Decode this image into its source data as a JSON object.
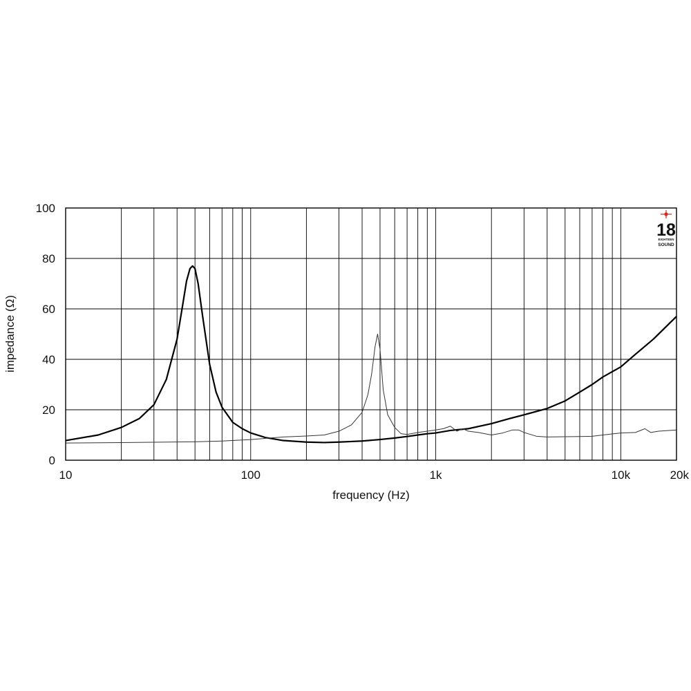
{
  "chart_data": {
    "type": "line",
    "xscale": "log",
    "xlabel": "frequency (Hz)",
    "ylabel": "impedance (Ω)",
    "xlim": [
      10,
      20000
    ],
    "ylim": [
      0,
      100
    ],
    "grid": true,
    "x_tick_labels": [
      {
        "value": 10,
        "label": "10"
      },
      {
        "value": 100,
        "label": "100"
      },
      {
        "value": 1000,
        "label": "1k"
      },
      {
        "value": 10000,
        "label": "10k"
      },
      {
        "value": 20000,
        "label": "20k"
      }
    ],
    "x_gridlines": [
      10,
      20,
      30,
      40,
      50,
      60,
      70,
      80,
      90,
      100,
      200,
      300,
      400,
      500,
      600,
      700,
      800,
      900,
      1000,
      2000,
      3000,
      4000,
      5000,
      6000,
      7000,
      8000,
      9000,
      10000,
      20000
    ],
    "y_ticks": [
      0,
      20,
      40,
      60,
      80,
      100
    ],
    "series": [
      {
        "style": "thick",
        "color": "#000000",
        "x": [
          10,
          15,
          20,
          25,
          30,
          35,
          40,
          43,
          45,
          47,
          48.5,
          50,
          52,
          55,
          60,
          65,
          70,
          80,
          90,
          100,
          120,
          150,
          200,
          250,
          300,
          400,
          500,
          600,
          700,
          800,
          900,
          1000,
          1200,
          1500,
          2000,
          2500,
          3000,
          4000,
          5000,
          6000,
          7000,
          8000,
          10000,
          12000,
          15000,
          20000
        ],
        "y": [
          7.8,
          10,
          13,
          16.5,
          22,
          32,
          48,
          62,
          71,
          76,
          77,
          76,
          70,
          57,
          38,
          27,
          21,
          15,
          12.5,
          10.8,
          9,
          7.8,
          7.2,
          7,
          7.2,
          7.6,
          8.2,
          8.8,
          9.4,
          10,
          10.5,
          10.8,
          11.8,
          12.5,
          14.5,
          16.5,
          18,
          20.5,
          23.5,
          27,
          30,
          33,
          37,
          42,
          48,
          57
        ]
      },
      {
        "style": "thin",
        "color": "#333333",
        "x": [
          10,
          20,
          50,
          70,
          100,
          150,
          200,
          250,
          300,
          350,
          400,
          430,
          450,
          470,
          485,
          500,
          520,
          550,
          600,
          650,
          700,
          800,
          900,
          1000,
          1100,
          1200,
          1300,
          1400,
          1500,
          1700,
          2000,
          2300,
          2600,
          2800,
          3000,
          3500,
          4000,
          5000,
          6000,
          7000,
          8000,
          10000,
          12000,
          13500,
          14500,
          16000,
          20000
        ],
        "y": [
          6.8,
          7,
          7.3,
          7.6,
          8.2,
          9.2,
          9.6,
          10,
          11.5,
          14,
          19,
          26,
          34,
          45,
          50,
          44,
          28,
          18,
          13,
          10.5,
          10.2,
          11,
          11.5,
          12,
          12.5,
          13.5,
          11.5,
          12.5,
          11.5,
          11,
          10,
          10.8,
          12,
          12,
          11,
          9.5,
          9.2,
          9.3,
          9.4,
          9.5,
          10,
          10.8,
          11,
          12.5,
          11,
          11.5,
          12
        ]
      }
    ]
  },
  "logo": {
    "number": "18",
    "line1": "EIGHTEEN",
    "line2": "SOUND",
    "star_color": "#d8281e"
  }
}
